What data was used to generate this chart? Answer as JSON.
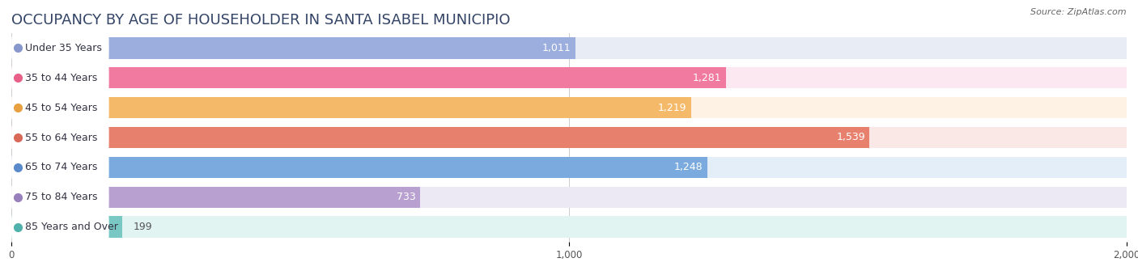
{
  "title": "OCCUPANCY BY AGE OF HOUSEHOLDER IN SANTA ISABEL MUNICIPIO",
  "source": "Source: ZipAtlas.com",
  "categories": [
    "Under 35 Years",
    "35 to 44 Years",
    "45 to 54 Years",
    "55 to 64 Years",
    "65 to 74 Years",
    "75 to 84 Years",
    "85 Years and Over"
  ],
  "values": [
    1011,
    1281,
    1219,
    1539,
    1248,
    733,
    199
  ],
  "bar_colors": [
    "#9baedd",
    "#f07aa0",
    "#f5b96a",
    "#e8806e",
    "#7aaade",
    "#b8a0d0",
    "#7ac8c4"
  ],
  "bar_bg_colors": [
    "#e8ecf5",
    "#fce8f0",
    "#fdf2e4",
    "#fae8e6",
    "#e4eef8",
    "#ece8f4",
    "#e2f4f2"
  ],
  "dot_colors": [
    "#8898cc",
    "#e8608a",
    "#e8a040",
    "#d86858",
    "#5a8acc",
    "#9880bc",
    "#50b0ac"
  ],
  "xlim": [
    0,
    2000
  ],
  "xticks": [
    0,
    1000,
    2000
  ],
  "background_color": "#ffffff",
  "bar_height": 0.72,
  "title_fontsize": 13,
  "label_fontsize": 9,
  "value_fontsize": 9
}
